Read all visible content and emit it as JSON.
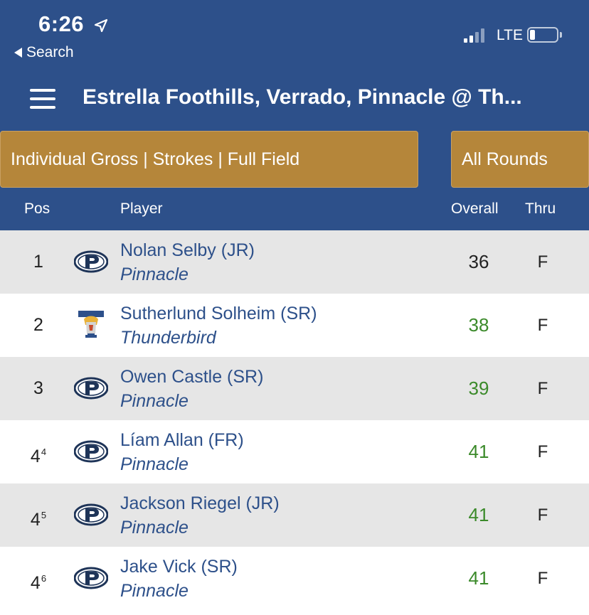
{
  "status_bar": {
    "time": "6:26",
    "back_label": "Search",
    "network": "LTE",
    "battery_level": 0.2
  },
  "header": {
    "title": "Estrella Foothills, Verrado, Pinnacle @ Th..."
  },
  "filters": {
    "format": "Individual Gross | Strokes | Full Field",
    "rounds": "All Rounds"
  },
  "columns": {
    "pos": "Pos",
    "player": "Player",
    "overall": "Overall",
    "thru": "Thru"
  },
  "colors": {
    "header_blue": "#2d508a",
    "filter_gold": "#b5863a",
    "score_black": "#222222",
    "score_green": "#3b8a2a"
  },
  "rows": [
    {
      "pos": "1",
      "pos_sup": "",
      "logo": "pinnacle-logo",
      "name": "Nolan Selby (JR)",
      "team": "Pinnacle",
      "overall": "36",
      "overall_color": "#222222",
      "thru": "F"
    },
    {
      "pos": "2",
      "pos_sup": "",
      "logo": "thunderbird-logo",
      "name": "Sutherlund Solheim (SR)",
      "team": "Thunderbird",
      "overall": "38",
      "overall_color": "#3b8a2a",
      "thru": "F"
    },
    {
      "pos": "3",
      "pos_sup": "",
      "logo": "pinnacle-logo",
      "name": "Owen Castle (SR)",
      "team": "Pinnacle",
      "overall": "39",
      "overall_color": "#3b8a2a",
      "thru": "F"
    },
    {
      "pos": "4",
      "pos_sup": "4",
      "logo": "pinnacle-logo",
      "name": "Líam Allan (FR)",
      "team": "Pinnacle",
      "overall": "41",
      "overall_color": "#3b8a2a",
      "thru": "F"
    },
    {
      "pos": "4",
      "pos_sup": "5",
      "logo": "pinnacle-logo",
      "name": "Jackson Riegel (JR)",
      "team": "Pinnacle",
      "overall": "41",
      "overall_color": "#3b8a2a",
      "thru": "F"
    },
    {
      "pos": "4",
      "pos_sup": "6",
      "logo": "pinnacle-logo",
      "name": "Jake Vick (SR)",
      "team": "Pinnacle",
      "overall": "41",
      "overall_color": "#3b8a2a",
      "thru": "F"
    }
  ]
}
